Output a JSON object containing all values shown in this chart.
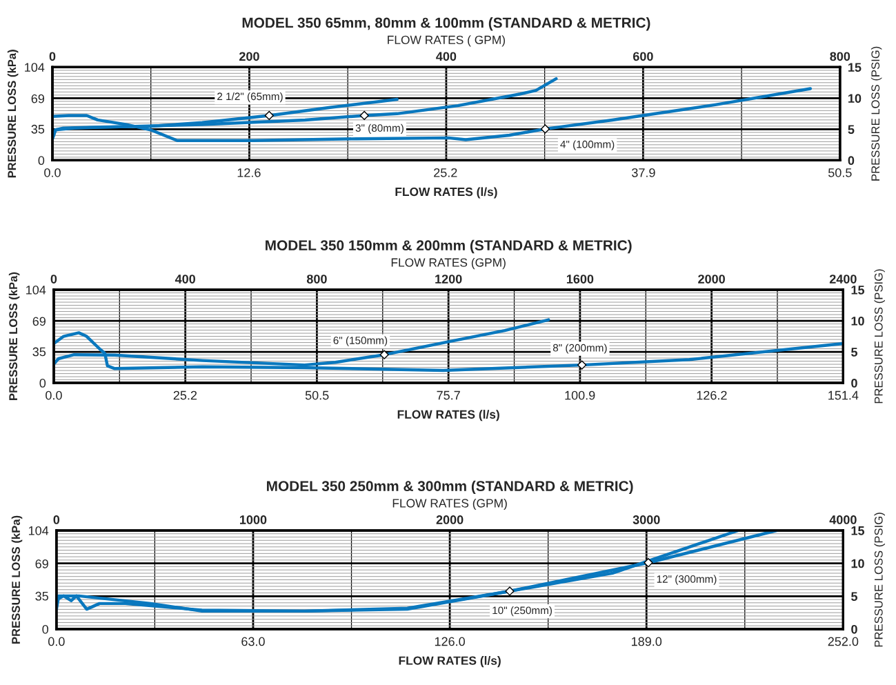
{
  "chart_data": [
    {
      "type": "line",
      "title": "MODEL 350 65mm, 80mm & 100mm (STANDARD & METRIC)",
      "xlabel": "FLOW RATES (l/s)",
      "x2label": "FLOW RATES ( GPM)",
      "ylabel": "PRESSURE LOSS (kPa)",
      "y2label": "PRESSURE LOSS (PSIG)",
      "xlim": [
        0,
        50.5
      ],
      "xticks": [
        {
          "value": 0,
          "label": "0.0"
        },
        12.6,
        25.2,
        37.9,
        50.5
      ],
      "x2lim": [
        0,
        800
      ],
      "x2ticks": [
        0,
        200,
        400,
        600,
        800
      ],
      "ylim": [
        0,
        104
      ],
      "yticks": [
        0,
        35,
        69,
        104
      ],
      "y2lim": [
        0,
        15
      ],
      "y2ticks": [
        0,
        5,
        10,
        15
      ],
      "grid": true,
      "series": [
        {
          "color": "#0a78be",
          "x": [
            0,
            0.2,
            0.7,
            3.0,
            6.3,
            9.6,
            13.9,
            17.8,
            22.1
          ],
          "values": [
            24,
            34,
            36,
            37,
            38,
            42,
            50,
            59,
            68
          ]
        },
        {
          "color": "#0a78be",
          "x": [
            0,
            0.2,
            1.4,
            9.6,
            16.2,
            20.0,
            22.1,
            26.0,
            30.0,
            31.0,
            32.3
          ],
          "values": [
            24,
            34,
            36,
            40,
            45,
            50,
            52,
            61,
            74,
            78,
            91
          ]
        },
        {
          "color": "#0a78be",
          "x": [
            0,
            1.05,
            2.2,
            2.9,
            4.7,
            6.3,
            8.0,
            12.9,
            19.5,
            25.4,
            26.5,
            29.3,
            31.6,
            35.9,
            42.5,
            48.6
          ],
          "values": [
            49,
            50,
            50,
            45,
            40,
            34,
            22,
            22,
            24,
            25,
            23,
            28,
            35,
            45,
            62,
            80
          ]
        }
      ],
      "annotations": [
        {
          "text": "2 1/2\" (65mm)",
          "x": 13.9,
          "y": 50
        },
        {
          "text": "3\" (80mm)",
          "x": 20.0,
          "y": 50
        },
        {
          "text": "4\" (100mm)",
          "x": 31.6,
          "y": 35
        }
      ]
    },
    {
      "type": "line",
      "title": "MODEL 350 150mm & 200mm (STANDARD & METRIC)",
      "xlabel": "FLOW RATES (l/s)",
      "x2label": "FLOW RATES (GPM)",
      "ylabel": "PRESSURE LOSS (kPa)",
      "y2label": "PRESSURE LOSS (PSIG)",
      "xlim": [
        0,
        151.4
      ],
      "xticks": [
        {
          "value": 0,
          "label": "0.0"
        },
        25.2,
        50.5,
        75.7,
        100.9,
        126.2,
        151.4
      ],
      "x2lim": [
        0,
        2400
      ],
      "x2ticks": [
        0,
        400,
        800,
        1200,
        1600,
        2000,
        2400
      ],
      "ylim": [
        0,
        104
      ],
      "yticks": [
        0,
        35,
        69,
        104
      ],
      "y2lim": [
        0,
        15
      ],
      "y2ticks": [
        0,
        5,
        10,
        15
      ],
      "grid": true,
      "series": [
        {
          "color": "#0a78be",
          "x": [
            0,
            0.9,
            3.9,
            11.7,
            28.5,
            48.1,
            54.0,
            63.4,
            75.7,
            86.5,
            94.9
          ],
          "values": [
            21,
            27,
            31.5,
            31,
            25,
            20,
            23,
            31.5,
            46,
            58.5,
            70.5
          ]
        },
        {
          "color": "#0a78be",
          "x": [
            0,
            1.9,
            4.8,
            6.3,
            8.8,
            9.8,
            10.3,
            11.7,
            28.5,
            48.1,
            74.7,
            101.3,
            121.9,
            151.4
          ],
          "values": [
            44,
            52,
            56,
            52,
            38,
            33,
            19,
            16,
            18,
            17,
            14,
            20,
            26,
            44
          ]
        }
      ],
      "annotations": [
        {
          "text": "6\" (150mm)",
          "x": 63.4,
          "y": 31.5
        },
        {
          "text": "8\" (200mm)",
          "x": 101.3,
          "y": 20
        }
      ]
    },
    {
      "type": "line",
      "title": "MODEL 350 250mm & 300mm (STANDARD & METRIC)",
      "xlabel": "FLOW RATES (l/s)",
      "x2label": "FLOW RATES (GPM)",
      "ylabel": "PRESSURE LOSS (kPa)",
      "y2label": "PRESSURE LOSS (PSIG)",
      "xlim": [
        0,
        252
      ],
      "xticks": [
        {
          "value": 0,
          "label": "0.0"
        },
        {
          "value": 63,
          "label": "63.0"
        },
        {
          "value": 126,
          "label": "126.0"
        },
        {
          "value": 189,
          "label": "189.0"
        },
        {
          "value": 252,
          "label": "252.0"
        }
      ],
      "x2lim": [
        0,
        4000
      ],
      "x2ticks": [
        0,
        1000,
        2000,
        3000,
        4000
      ],
      "ylim": [
        0,
        104
      ],
      "yticks": [
        0,
        35,
        69,
        104
      ],
      "y2lim": [
        0,
        15
      ],
      "y2ticks": [
        0,
        5,
        10,
        15
      ],
      "grid": true,
      "series": [
        {
          "color": "#0a78be",
          "x": [
            0,
            0.6,
            2.3,
            4.7,
            6.4,
            9.7,
            13.8,
            22.0,
            46.6,
            79.5,
            112.4,
            145.2,
            178.1,
            218.4
          ],
          "values": [
            21,
            32,
            35,
            30,
            35,
            21,
            27,
            27,
            20,
            19,
            21,
            40,
            59,
            104
          ]
        },
        {
          "color": "#0a78be",
          "x": [
            0,
            0.6,
            7.2,
            30.2,
            46.6,
            79.5,
            112.4,
            145.2,
            189.6,
            230.7
          ],
          "values": [
            27,
            35,
            35,
            27,
            19,
            19,
            22,
            40,
            70,
            104
          ]
        }
      ],
      "annotations": [
        {
          "text": "10\" (250mm)",
          "x": 145.2,
          "y": 40
        },
        {
          "text": "12\" (300mm)",
          "x": 189.6,
          "y": 70
        }
      ]
    }
  ]
}
